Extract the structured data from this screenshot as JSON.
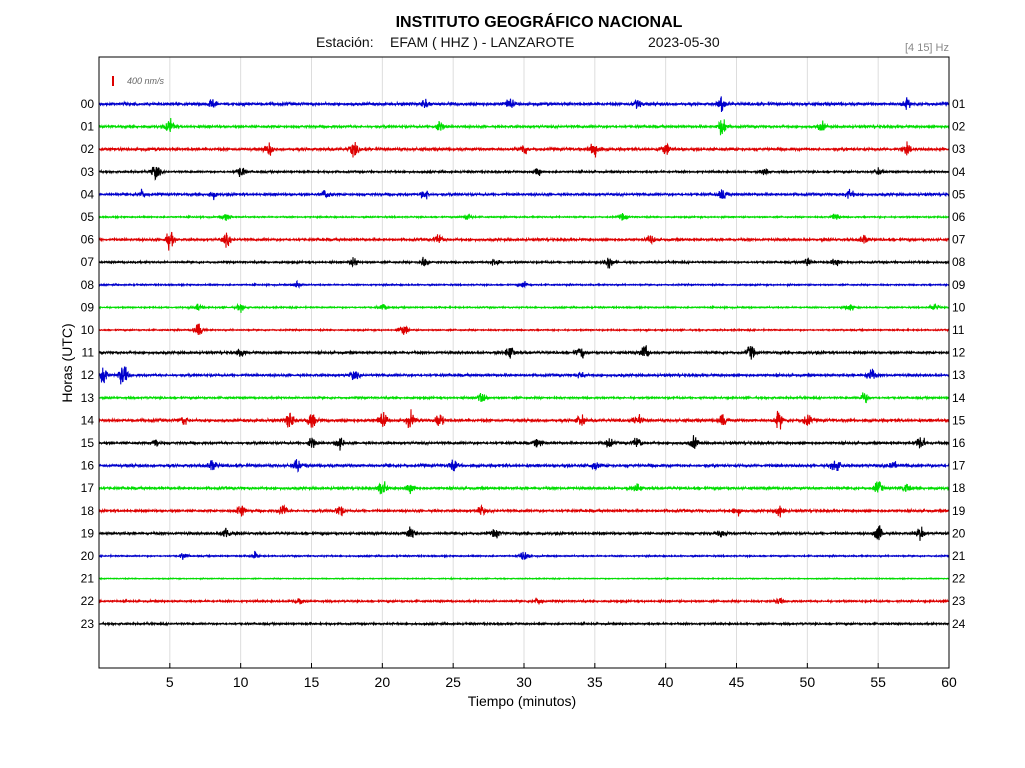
{
  "chart_data": {
    "type": "line",
    "title": "INSTITUTO GEOGRÁFICO NACIONAL",
    "station_label": "Estación:",
    "station": "EFAM ( HHZ ) - LANZAROTE",
    "date": "2023-05-30",
    "filter": "[4 15] Hz",
    "scale": "400 nm/s",
    "xlabel": "Tiempo (minutos)",
    "ylabel": "Horas (UTC)",
    "xlim": [
      0,
      60
    ],
    "x_ticks": [
      "5",
      "10",
      "15",
      "20",
      "25",
      "30",
      "35",
      "40",
      "45",
      "50",
      "55",
      "60"
    ],
    "grid": true,
    "trace_colors": [
      "#0000cc",
      "#00dd00",
      "#dd0000",
      "#000000"
    ],
    "hours_left": [
      "00",
      "01",
      "02",
      "03",
      "04",
      "05",
      "06",
      "07",
      "08",
      "09",
      "10",
      "11",
      "12",
      "13",
      "14",
      "15",
      "16",
      "17",
      "18",
      "19",
      "20",
      "21",
      "22",
      "23"
    ],
    "hours_right": [
      "01",
      "02",
      "03",
      "04",
      "05",
      "06",
      "07",
      "08",
      "09",
      "10",
      "11",
      "12",
      "13",
      "14",
      "15",
      "16",
      "17",
      "18",
      "19",
      "20",
      "21",
      "22",
      "23",
      "24"
    ],
    "noise_level": [
      3,
      2.5,
      3,
      2,
      2.5,
      1.5,
      2.5,
      2,
      1.5,
      1.5,
      1.5,
      2.5,
      2.5,
      2,
      3,
      2.5,
      3,
      2.5,
      2.5,
      2.5,
      1.5,
      1,
      2,
      2
    ],
    "bursts": [
      [
        [
          8,
          3
        ],
        [
          23,
          4
        ],
        [
          29,
          5
        ],
        [
          38,
          4
        ],
        [
          44,
          6
        ],
        [
          57,
          4
        ]
      ],
      [
        [
          5,
          6
        ],
        [
          24,
          4
        ],
        [
          44,
          8
        ],
        [
          51,
          4
        ]
      ],
      [
        [
          12,
          5
        ],
        [
          18,
          6
        ],
        [
          30,
          5
        ],
        [
          35,
          7
        ],
        [
          40,
          5
        ],
        [
          57,
          4
        ]
      ],
      [
        [
          4,
          7
        ],
        [
          10,
          5
        ],
        [
          31,
          3
        ],
        [
          47,
          3
        ],
        [
          55,
          3
        ]
      ],
      [
        [
          3,
          4
        ],
        [
          8,
          4
        ],
        [
          16,
          4
        ],
        [
          23,
          4
        ],
        [
          44,
          4
        ],
        [
          53,
          4
        ]
      ],
      [
        [
          9,
          3
        ],
        [
          26,
          3
        ],
        [
          37,
          3
        ],
        [
          52,
          3
        ]
      ],
      [
        [
          5,
          7
        ],
        [
          9,
          5
        ],
        [
          24,
          4
        ],
        [
          39,
          4
        ],
        [
          54,
          4
        ]
      ],
      [
        [
          18,
          4
        ],
        [
          23,
          5
        ],
        [
          28,
          4
        ],
        [
          36,
          5
        ],
        [
          50,
          4
        ],
        [
          52,
          4
        ]
      ],
      [
        [
          14,
          3
        ],
        [
          30,
          3
        ]
      ],
      [
        [
          7,
          3
        ],
        [
          10,
          3
        ],
        [
          20,
          3
        ],
        [
          53,
          3
        ],
        [
          59,
          3
        ]
      ],
      [
        [
          7,
          6
        ],
        [
          21.5,
          5
        ]
      ],
      [
        [
          10,
          4
        ],
        [
          29,
          6
        ],
        [
          34,
          5
        ],
        [
          38.5,
          7
        ],
        [
          46,
          6
        ]
      ],
      [
        [
          0.3,
          9
        ],
        [
          1.7,
          11
        ],
        [
          18,
          4
        ],
        [
          34,
          3
        ],
        [
          54.5,
          6
        ]
      ],
      [
        [
          27,
          4
        ],
        [
          54,
          5
        ]
      ],
      [
        [
          6,
          4
        ],
        [
          13.5,
          7
        ],
        [
          15,
          7
        ],
        [
          20,
          7
        ],
        [
          22,
          7
        ],
        [
          24,
          7
        ],
        [
          34,
          5
        ],
        [
          38,
          5
        ],
        [
          44,
          5
        ],
        [
          48,
          7
        ],
        [
          50,
          5
        ]
      ],
      [
        [
          4,
          4
        ],
        [
          15,
          4
        ],
        [
          17,
          5
        ],
        [
          31,
          4
        ],
        [
          36,
          4
        ],
        [
          38,
          5
        ],
        [
          42,
          5
        ],
        [
          58,
          7
        ]
      ],
      [
        [
          8,
          5
        ],
        [
          14,
          6
        ],
        [
          25,
          5
        ],
        [
          35,
          4
        ],
        [
          52,
          6
        ],
        [
          56,
          4
        ]
      ],
      [
        [
          20,
          6
        ],
        [
          22,
          4
        ],
        [
          38,
          4
        ],
        [
          55,
          6
        ],
        [
          57,
          4
        ]
      ],
      [
        [
          10,
          6
        ],
        [
          13,
          5
        ],
        [
          17,
          5
        ],
        [
          27,
          4
        ],
        [
          45,
          4
        ],
        [
          48,
          5
        ]
      ],
      [
        [
          9,
          5
        ],
        [
          22,
          6
        ],
        [
          28,
          4
        ],
        [
          44,
          4
        ],
        [
          55,
          7
        ],
        [
          58,
          6
        ]
      ],
      [
        [
          6,
          3
        ],
        [
          11,
          3
        ],
        [
          30,
          5
        ]
      ],
      [],
      [
        [
          14,
          3
        ],
        [
          31,
          3
        ],
        [
          48,
          3
        ]
      ],
      []
    ]
  }
}
